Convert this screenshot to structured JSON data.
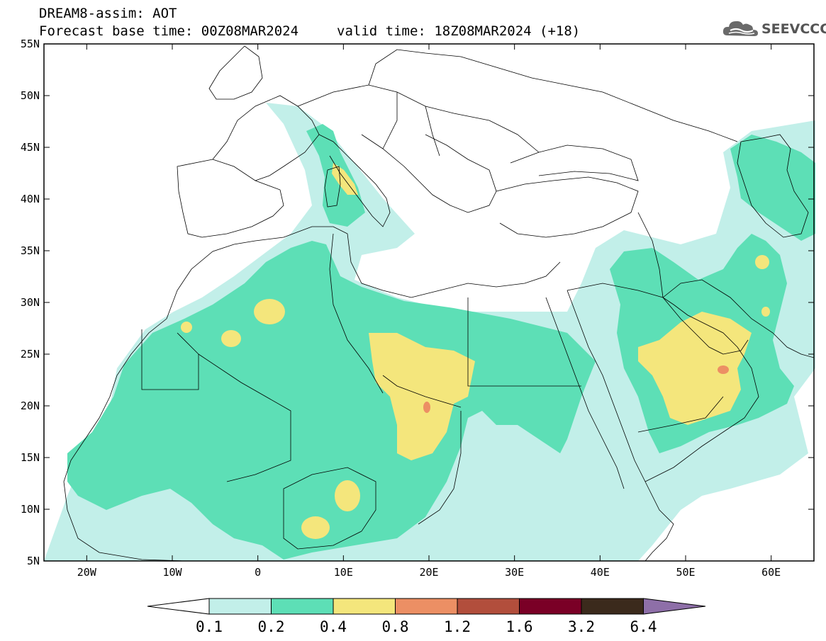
{
  "header": {
    "title_line1": "DREAM8-assim: AOT",
    "forecast_base": "Forecast base time: 00Z08MAR2024",
    "valid_time": "valid time: 18Z08MAR2024 (+18)",
    "logo_text": "SEEVCCC",
    "logo_icon": "cloud-icon"
  },
  "map": {
    "lat_labels": [
      "55N",
      "50N",
      "45N",
      "40N",
      "35N",
      "30N",
      "25N",
      "20N",
      "15N",
      "10N",
      "5N"
    ],
    "lon_labels": [
      "20W",
      "10W",
      "0",
      "10E",
      "20E",
      "30E",
      "40E",
      "50E",
      "60E"
    ],
    "lat_range": [
      5,
      55
    ],
    "lon_range": [
      -25,
      65
    ]
  },
  "colorbar": {
    "levels": [
      "0.1",
      "0.2",
      "0.4",
      "0.8",
      "1.2",
      "1.6",
      "3.2",
      "6.4"
    ],
    "colors": [
      "#ffffff",
      "#c2efe9",
      "#5ddfb6",
      "#f4e67c",
      "#ec8f64",
      "#b24e3c",
      "#7a0026",
      "#3b2a1c",
      "#8e6fa8"
    ]
  }
}
